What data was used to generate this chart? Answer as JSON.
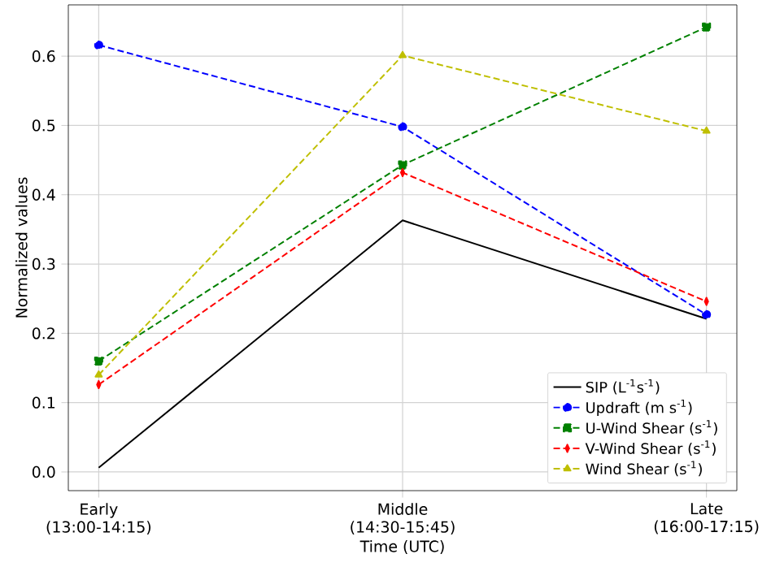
{
  "chart_data": {
    "type": "line",
    "xlabel": "Time (UTC)",
    "ylabel": "Normalized values",
    "categories": [
      "Early\n(13:00-14:15)",
      "Middle\n(14:30-15:45)",
      "Late\n(16:00-17:15)"
    ],
    "series": [
      {
        "name": "SIP (L$^{-1}$s$^{-1}$)",
        "color": "#000000",
        "values": [
          0.006,
          0.363,
          0.221
        ],
        "marker": "none",
        "line_style": "solid"
      },
      {
        "name": "Updraft (m s$^{-1}$)",
        "color": "#0000ff",
        "values": [
          0.616,
          0.498,
          0.227
        ],
        "marker": "circle",
        "line_style": "dashed"
      },
      {
        "name": "U-Wind Shear (s$^{-1}$)",
        "color": "#008000",
        "values": [
          0.16,
          0.443,
          0.642
        ],
        "marker": "square",
        "line_style": "dashed"
      },
      {
        "name": "V-Wind Shear (s$^{-1}$)",
        "color": "#ff0000",
        "values": [
          0.126,
          0.432,
          0.246
        ],
        "marker": "diamond",
        "line_style": "dashed"
      },
      {
        "name": "Wind Shear (s$^{-1}$)",
        "color": "#bfbf00",
        "values": [
          0.14,
          0.601,
          0.492
        ],
        "marker": "triangle",
        "line_style": "dashed"
      }
    ],
    "ylim": [
      -0.027,
      0.674
    ],
    "yticks": [
      {
        "value": 0,
        "label": "0.0"
      },
      0.1,
      0.2,
      0.3,
      0.4,
      0.5,
      0.6
    ],
    "grid": true,
    "legend": "bottom right"
  }
}
